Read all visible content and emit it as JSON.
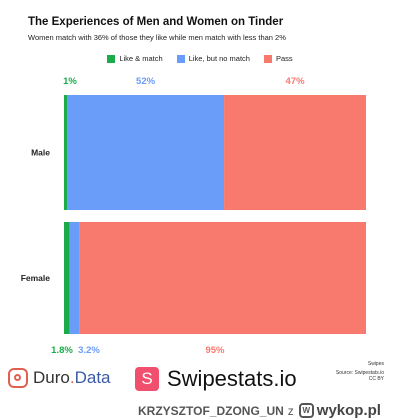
{
  "chart_data": {
    "type": "bar",
    "orientation": "horizontal",
    "stacked": true,
    "normalized": true,
    "title": "The Experiences of Men and Women on Tinder",
    "subtitle": "Women match with 36% of those they like while men match with less than 2%",
    "categories": [
      "Male",
      "Female"
    ],
    "series": [
      {
        "name": "Like & match",
        "color": "#1aab4b",
        "values": [
          1,
          1.8
        ],
        "labels": [
          "1%",
          "1.8%"
        ]
      },
      {
        "name": "Like, but no match",
        "color": "#6a9cfa",
        "values": [
          52,
          3.2
        ],
        "labels": [
          "52%",
          "3.2%"
        ]
      },
      {
        "name": "Pass",
        "color": "#f87a6f",
        "values": [
          47,
          95
        ],
        "labels": [
          "47%",
          "95%"
        ]
      }
    ],
    "legend_position": "top-center",
    "grid": false
  },
  "footer": {
    "duro_text": "Duro",
    "duro_dot": ".",
    "duro_data": "Data",
    "swipestats_badge": "S",
    "swipestats_text": "Swipestats.io",
    "credit_brand": "Swipes",
    "credit_source": "Source: Swipestats.io",
    "credit_license": "CC BY",
    "watermark_user": "KRZYSZTOF_DZONG_UN",
    "watermark_z": "z",
    "watermark_logo": "W",
    "watermark_site": "wykop.pl"
  }
}
